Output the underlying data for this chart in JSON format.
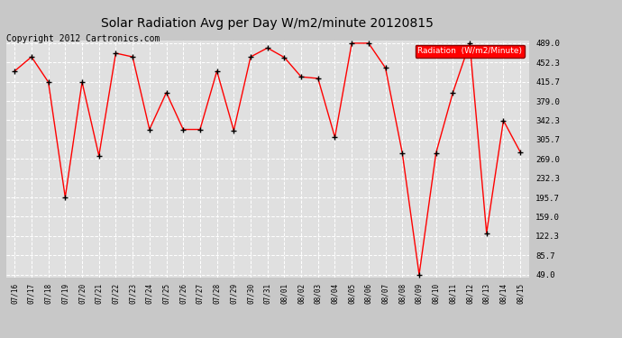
{
  "title": "Solar Radiation Avg per Day W/m2/minute 20120815",
  "copyright": "Copyright 2012 Cartronics.com",
  "legend_label": "Radiation  (W/m2/Minute)",
  "dates": [
    "07/16",
    "07/17",
    "07/18",
    "07/19",
    "07/20",
    "07/21",
    "07/22",
    "07/23",
    "07/24",
    "07/25",
    "07/26",
    "07/27",
    "07/28",
    "07/29",
    "07/30",
    "07/31",
    "08/01",
    "08/02",
    "08/03",
    "08/04",
    "08/05",
    "08/06",
    "08/07",
    "08/08",
    "08/09",
    "08/10",
    "08/11",
    "08/12",
    "08/13",
    "08/14",
    "08/15"
  ],
  "values": [
    436,
    463,
    415,
    196,
    415,
    275,
    470,
    463,
    325,
    395,
    325,
    325,
    436,
    323,
    463,
    480,
    462,
    425,
    422,
    310,
    489,
    489,
    442,
    280,
    49,
    280,
    395,
    489,
    128,
    342,
    282
  ],
  "yticks": [
    49.0,
    85.7,
    122.3,
    159.0,
    195.7,
    232.3,
    269.0,
    305.7,
    342.3,
    379.0,
    415.7,
    452.3,
    489.0
  ],
  "ymin": 49.0,
  "ymax": 489.0,
  "line_color": "red",
  "marker_color": "black",
  "bg_color": "#c8c8c8",
  "plot_bg_color": "#e0e0e0",
  "grid_color": "white",
  "title_fontsize": 10,
  "copyright_fontsize": 7,
  "legend_bg": "red",
  "legend_text_color": "white"
}
